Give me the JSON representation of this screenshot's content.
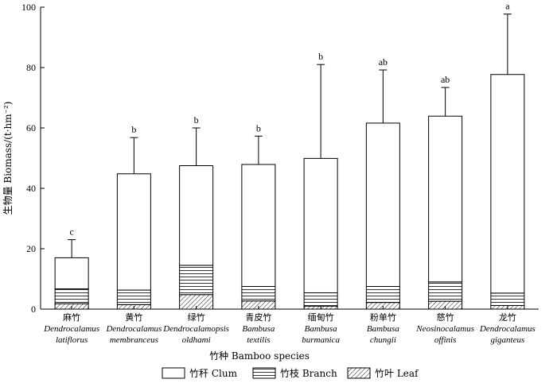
{
  "chart_data": {
    "type": "bar",
    "stacked": true,
    "xlabel": "竹种 Bamboo species",
    "ylabel": "生物量 Biomass/(t·hm⁻²)",
    "ylim": [
      0,
      100
    ],
    "yticks": [
      0,
      20,
      40,
      60,
      80,
      100
    ],
    "grid": false,
    "legend_position": "bottom",
    "categories": [
      {
        "cn": "麻竹",
        "latin1": "Dendrocalamus",
        "latin2": "latiflorus"
      },
      {
        "cn": "黄竹",
        "latin1": "Dendrocalamus",
        "latin2": "membranceus"
      },
      {
        "cn": "绿竹",
        "latin1": "Dendrocalamopsis",
        "latin2": "oldhami"
      },
      {
        "cn": "青皮竹",
        "latin1": "Bambusa",
        "latin2": "textilis"
      },
      {
        "cn": "缅甸竹",
        "latin1": "Bambusa",
        "latin2": "burmanica"
      },
      {
        "cn": "粉单竹",
        "latin1": "Bambusa",
        "latin2": "chungii"
      },
      {
        "cn": "慈竹",
        "latin1": "Neosinocalamus",
        "latin2": "offinis"
      },
      {
        "cn": "龙竹",
        "latin1": "Dendrocalamus",
        "latin2": "giganteus"
      }
    ],
    "series": [
      {
        "name": "竹叶 Leaf",
        "pattern": "diagonal",
        "values": [
          1.8,
          1.5,
          4.8,
          2.7,
          1.0,
          2.2,
          2.6,
          1.2
        ]
      },
      {
        "name": "竹枝 Branch",
        "pattern": "horizontal",
        "values": [
          4.9,
          4.8,
          9.7,
          4.8,
          4.4,
          5.3,
          6.4,
          4.1
        ]
      },
      {
        "name": "竹秆 Clum",
        "pattern": "none",
        "values": [
          10.3,
          38.5,
          33.0,
          40.4,
          44.5,
          54.1,
          54.9,
          72.4
        ]
      }
    ],
    "totals": [
      17.0,
      44.8,
      47.5,
      47.9,
      49.9,
      61.6,
      63.9,
      77.7
    ],
    "error_upper": [
      23.0,
      56.8,
      60.0,
      57.3,
      81.0,
      79.2,
      73.4,
      97.7
    ],
    "significance": [
      "c",
      "b",
      "b",
      "b",
      "b",
      "ab",
      "ab",
      "a"
    ]
  }
}
